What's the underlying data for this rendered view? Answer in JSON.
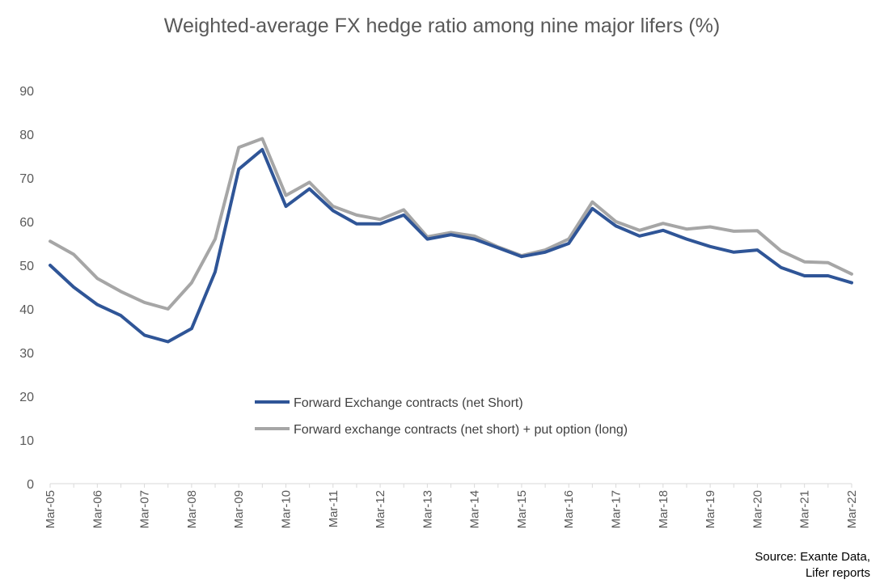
{
  "chart_data": {
    "type": "line",
    "title": "Weighted-average FX hedge ratio among nine major lifers (%)",
    "x": [
      "Mar-05",
      "Sep-05",
      "Mar-06",
      "Sep-06",
      "Mar-07",
      "Sep-07",
      "Mar-08",
      "Sep-08",
      "Mar-09",
      "Sep-09",
      "Mar-10",
      "Sep-10",
      "Mar-11",
      "Sep-11",
      "Mar-12",
      "Sep-12",
      "Mar-13",
      "Sep-13",
      "Mar-14",
      "Sep-14",
      "Mar-15",
      "Sep-15",
      "Mar-16",
      "Sep-16",
      "Mar-17",
      "Sep-17",
      "Mar-18",
      "Sep-18",
      "Mar-19",
      "Sep-19",
      "Mar-20",
      "Sep-20",
      "Mar-21",
      "Sep-21",
      "Mar-22"
    ],
    "tick_labels": [
      "Mar-05",
      "Mar-06",
      "Mar-07",
      "Mar-08",
      "Mar-09",
      "Mar-10",
      "Mar-11",
      "Mar-12",
      "Mar-13",
      "Mar-14",
      "Mar-15",
      "Mar-16",
      "Mar-17",
      "Mar-18",
      "Mar-19",
      "Mar-20",
      "Mar-21",
      "Mar-22"
    ],
    "ylim": [
      0,
      90
    ],
    "yticks": [
      0,
      10,
      20,
      30,
      40,
      50,
      60,
      70,
      80,
      90
    ],
    "grid": false,
    "legend_position": "center",
    "series": [
      {
        "name": "Forward Exchange contracts (net Short)",
        "color": "#2f5597",
        "values": [
          50,
          45,
          41,
          38.5,
          34,
          32.5,
          35.5,
          48.5,
          72,
          76.5,
          63.5,
          67.5,
          62.5,
          59.5,
          59.5,
          61.5,
          56,
          57,
          56,
          54,
          52,
          53,
          55,
          63,
          59,
          56.7,
          58,
          56,
          54.3,
          53,
          53.5,
          49.5,
          47.6,
          47.6,
          46
        ]
      },
      {
        "name": "Forward exchange contracts (net short) + put option (long)",
        "color": "#a6a6a6",
        "values": [
          55.5,
          52.5,
          47,
          44,
          41.5,
          40,
          46,
          56,
          77,
          79,
          66,
          69,
          63.5,
          61.5,
          60.5,
          62.7,
          56.5,
          57.5,
          56.7,
          54.2,
          52.2,
          53.5,
          56,
          64.5,
          60,
          58,
          59.6,
          58.3,
          58.8,
          57.8,
          57.9,
          53.3,
          50.8,
          50.6,
          48
        ]
      }
    ]
  },
  "source": {
    "line1": "Source: Exante Data,",
    "line2": "Lifer reports"
  }
}
